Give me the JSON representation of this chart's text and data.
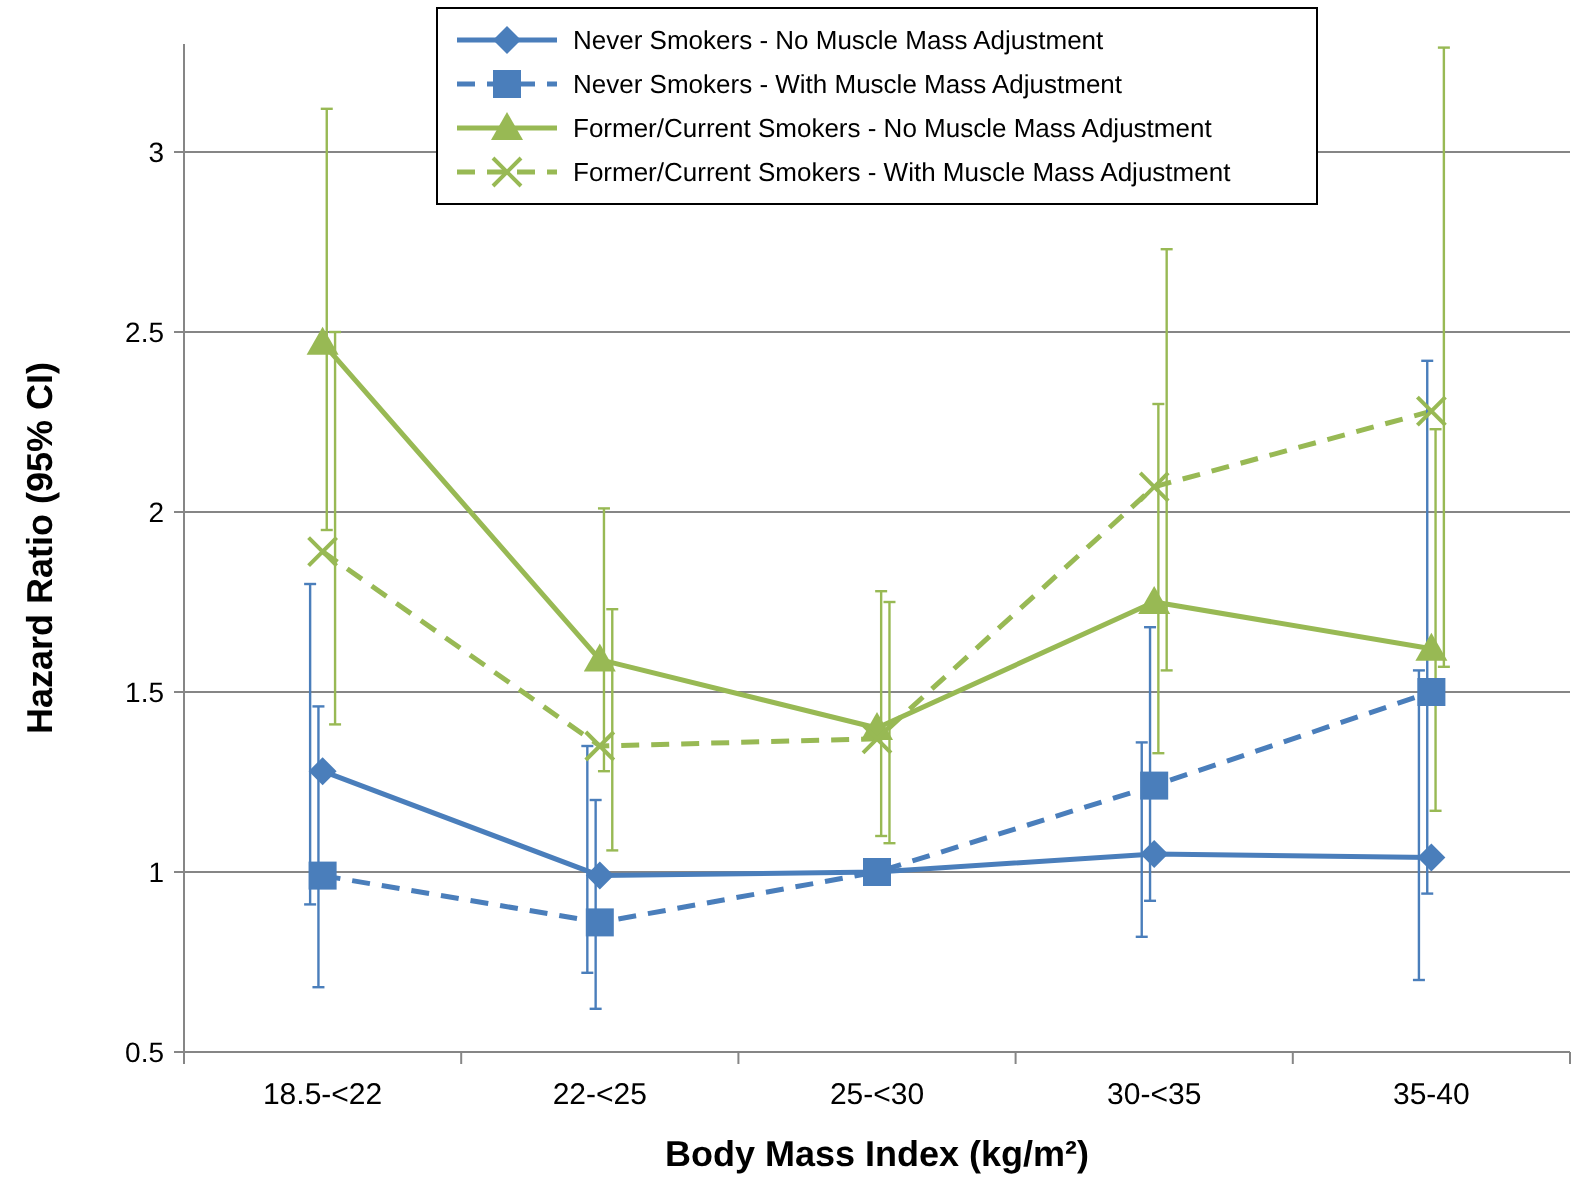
{
  "chart_data": {
    "type": "line",
    "xlabel": "Body Mass Index (kg/m²)",
    "ylabel": "Hazard Ratio (95% CI)",
    "categories": [
      "18.5-<22",
      "22-<25",
      "25-<30",
      "30-<35",
      "35-40"
    ],
    "ylim": [
      0.5,
      3.3
    ],
    "yticks": [
      0.5,
      1,
      1.5,
      2,
      2.5,
      3
    ],
    "grid": "y",
    "legend": "top",
    "series": [
      {
        "name": "Never Smokers - No Muscle Mass Adjustment",
        "color": "#4a7ebb",
        "marker": "diamond",
        "line_style": "solid",
        "values": [
          1.28,
          0.99,
          1.0,
          1.05,
          1.04
        ],
        "errors": [
          [
            0.91,
            1.8
          ],
          [
            0.72,
            1.35
          ],
          null,
          [
            0.82,
            1.36
          ],
          [
            0.7,
            1.56
          ]
        ]
      },
      {
        "name": "Never Smokers - With Muscle Mass Adjustment",
        "color": "#4a7ebb",
        "marker": "square",
        "line_style": "dashed",
        "values": [
          0.99,
          0.86,
          1.0,
          1.24,
          1.5
        ],
        "errors": [
          [
            0.68,
            1.46
          ],
          [
            0.62,
            1.2
          ],
          null,
          [
            0.92,
            1.68
          ],
          [
            0.94,
            2.42
          ]
        ]
      },
      {
        "name": "Former/Current Smokers - No Muscle Mass Adjustment",
        "color": "#98b954",
        "marker": "triangle",
        "line_style": "solid",
        "values": [
          2.47,
          1.59,
          1.4,
          1.75,
          1.62
        ],
        "errors": [
          [
            1.95,
            3.12
          ],
          [
            1.28,
            2.01
          ],
          [
            1.1,
            1.78
          ],
          [
            1.33,
            2.3
          ],
          [
            1.17,
            2.23
          ]
        ]
      },
      {
        "name": "Former/Current Smokers - With Muscle Mass Adjustment",
        "color": "#98b954",
        "marker": "cross",
        "line_style": "dashed",
        "values": [
          1.89,
          1.35,
          1.37,
          2.07,
          2.28
        ],
        "errors": [
          [
            1.41,
            2.5
          ],
          [
            1.06,
            1.73
          ],
          [
            1.08,
            1.75
          ],
          [
            1.56,
            2.73
          ],
          [
            1.57,
            3.29
          ]
        ]
      }
    ]
  }
}
